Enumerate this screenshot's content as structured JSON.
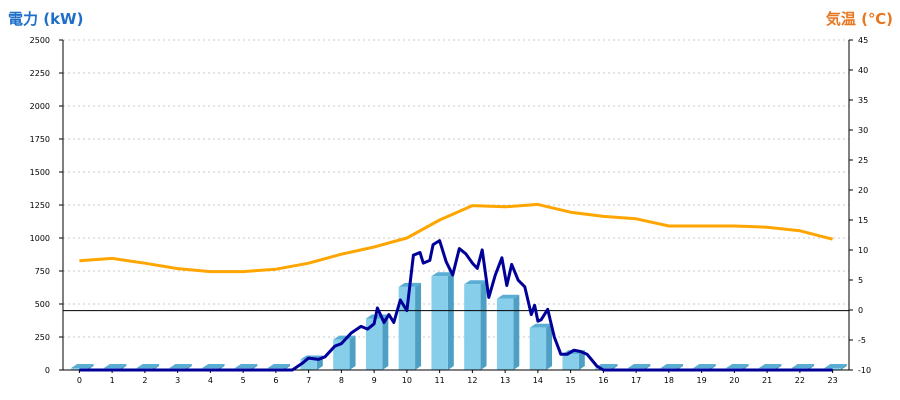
{
  "chart_data": {
    "type": "bar+line",
    "left_axis_title": "電力 (kW)",
    "right_axis_title": "気温 (℃)",
    "x_ticks": [
      "0",
      "1",
      "2",
      "3",
      "4",
      "5",
      "6",
      "7",
      "8",
      "9",
      "10",
      "11",
      "12",
      "13",
      "14",
      "15",
      "16",
      "17",
      "18",
      "19",
      "20",
      "21",
      "22",
      "23"
    ],
    "y_left": {
      "min": 0,
      "max": 2500,
      "step": 250,
      "ticks": [
        "0",
        "250",
        "500",
        "750",
        "1000",
        "1250",
        "1500",
        "1750",
        "2000",
        "2250",
        "2500"
      ]
    },
    "y_right": {
      "min": -10,
      "max": 45,
      "step": 5,
      "ticks": [
        "-10",
        "-5",
        "0",
        "5",
        "10",
        "15",
        "20",
        "25",
        "30",
        "35",
        "40",
        "45"
      ]
    },
    "grid": true,
    "bars": {
      "axis": "left",
      "x": [
        0,
        1,
        2,
        3,
        4,
        5,
        6,
        7,
        8,
        9,
        10,
        11,
        12,
        13,
        14,
        15,
        16,
        17,
        18,
        19,
        20,
        21,
        22,
        23
      ],
      "values": [
        15,
        15,
        15,
        15,
        15,
        15,
        15,
        80,
        230,
        390,
        630,
        710,
        650,
        540,
        320,
        120,
        15,
        15,
        15,
        15,
        15,
        15,
        15,
        15
      ],
      "color": "#87ceeb"
    },
    "power_line": {
      "axis": "left",
      "color": "#000099",
      "x": [
        0,
        1,
        2,
        3,
        4,
        5,
        6,
        6.5,
        6.8,
        7.0,
        7.3,
        7.5,
        7.8,
        8.0,
        8.3,
        8.6,
        8.8,
        9.0,
        9.1,
        9.3,
        9.45,
        9.6,
        9.8,
        10.0,
        10.2,
        10.4,
        10.5,
        10.7,
        10.8,
        11.0,
        11.2,
        11.4,
        11.6,
        11.8,
        12.0,
        12.15,
        12.3,
        12.5,
        12.7,
        12.9,
        13.05,
        13.2,
        13.4,
        13.6,
        13.8,
        13.9,
        14.0,
        14.1,
        14.3,
        14.5,
        14.7,
        14.9,
        15.1,
        15.3,
        15.5,
        15.6,
        15.8,
        16.0,
        17,
        18,
        19,
        20,
        21,
        22,
        23
      ],
      "values": [
        0,
        0,
        0,
        0,
        0,
        0,
        0,
        0,
        50,
        90,
        80,
        100,
        180,
        200,
        280,
        330,
        310,
        350,
        470,
        360,
        420,
        360,
        530,
        450,
        870,
        890,
        810,
        830,
        950,
        980,
        820,
        720,
        920,
        880,
        810,
        770,
        910,
        550,
        720,
        850,
        640,
        800,
        680,
        630,
        420,
        490,
        370,
        380,
        460,
        250,
        120,
        120,
        150,
        140,
        120,
        90,
        30,
        0,
        0,
        0,
        0,
        0,
        0,
        0,
        0
      ]
    },
    "temperature_line": {
      "axis": "right",
      "color": "#ffa500",
      "x": [
        0,
        1,
        2,
        3,
        4,
        5,
        6,
        7,
        8,
        9,
        10,
        11,
        12,
        13,
        14,
        15,
        16,
        17,
        18,
        19,
        20,
        21,
        22,
        23
      ],
      "values": [
        8.2,
        8.6,
        7.8,
        6.9,
        6.4,
        6.4,
        6.8,
        7.8,
        9.3,
        10.5,
        12.0,
        15.0,
        17.4,
        17.2,
        17.6,
        16.3,
        15.6,
        15.2,
        14.0,
        14.0,
        14.0,
        13.8,
        13.2,
        11.8
      ]
    },
    "reference_line": {
      "axis": "left",
      "value": 450,
      "color": "#000000"
    }
  }
}
